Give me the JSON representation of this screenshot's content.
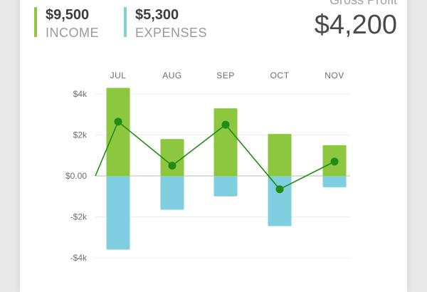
{
  "summary": {
    "income": {
      "amount": "$9,500",
      "label": "INCOME",
      "color": "#8dc63f"
    },
    "expenses": {
      "amount": "$5,300",
      "label": "EXPENSES",
      "color": "#7fcfe0"
    },
    "gross_profit": {
      "label": "Gross Profit",
      "amount": "$4,200"
    }
  },
  "chart_data": {
    "type": "bar",
    "categories": [
      "JUL",
      "AUG",
      "SEP",
      "OCT",
      "NOV"
    ],
    "series": [
      {
        "values": [
          4300,
          1800,
          3300,
          2050,
          1500
        ],
        "color": "#8dc63f"
      },
      {
        "values": [
          -3600,
          -1650,
          -1000,
          -2450,
          -550
        ],
        "color": "#7fcfe0"
      },
      {
        "type": "line",
        "values": [
          2650,
          500,
          2500,
          -650,
          700
        ],
        "color": "#218c14"
      }
    ],
    "line_start_value": 0,
    "yticks": [
      4000,
      2000,
      0,
      -2000,
      -4000
    ],
    "ytick_labels": [
      "$4k",
      "$2k",
      "$0.00",
      "-$2k",
      "-$4k"
    ],
    "ylim": [
      -4000,
      4000
    ],
    "grid": true
  }
}
